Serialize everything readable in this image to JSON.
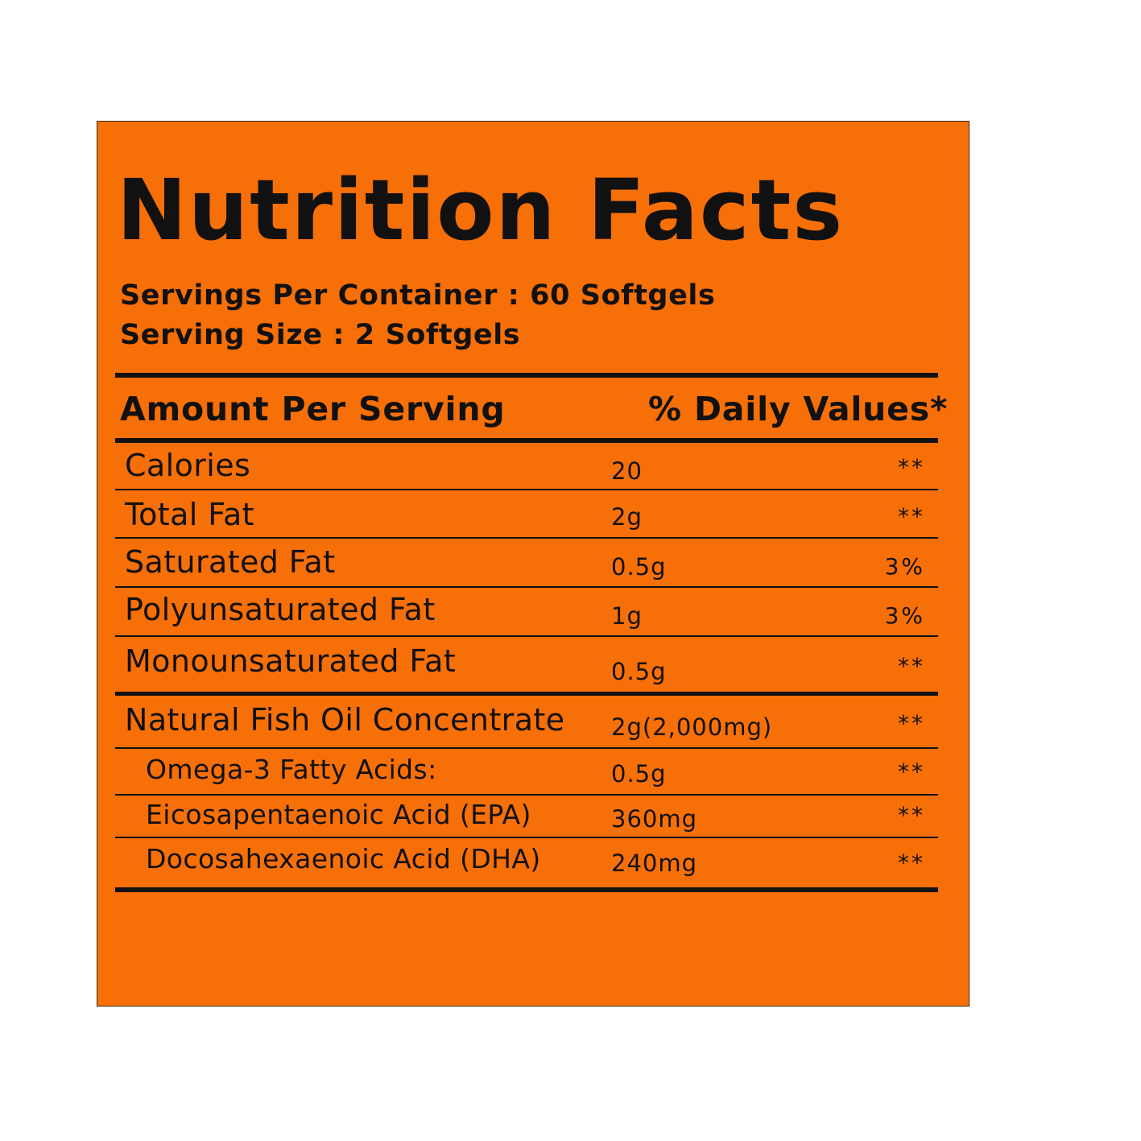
{
  "label": {
    "title": "Nutrition Facts",
    "servings_per_container": "Servings Per Container : 60 Softgels",
    "serving_size": "Serving Size : 2 Softgels",
    "header_amount": "Amount Per Serving",
    "header_daily": "% Daily Values*",
    "rows": [
      {
        "name": "Calories",
        "amount": "20",
        "dv": "**"
      },
      {
        "name": "Total Fat",
        "amount": "2g",
        "dv": "**"
      },
      {
        "name": "Saturated Fat",
        "amount": "0.5g",
        "dv": "3%"
      },
      {
        "name": "Polyunsaturated Fat",
        "amount": "1g",
        "dv": "3%"
      },
      {
        "name": "Monounsaturated Fat",
        "amount": "0.5g",
        "dv": "**"
      },
      {
        "name": "Natural Fish Oil Concentrate",
        "amount": "2g(2,000mg)",
        "dv": "**"
      },
      {
        "name": "Omega-3 Fatty Acids:",
        "amount": "0.5g",
        "dv": "**"
      },
      {
        "name": "Eicosapentaenoic Acid (EPA)",
        "amount": "360mg",
        "dv": "**"
      },
      {
        "name": "Docosahexaenoic Acid (DHA)",
        "amount": "240mg",
        "dv": "**"
      }
    ]
  },
  "colors": {
    "panel_background": "#f76f07",
    "text": "#111111"
  }
}
